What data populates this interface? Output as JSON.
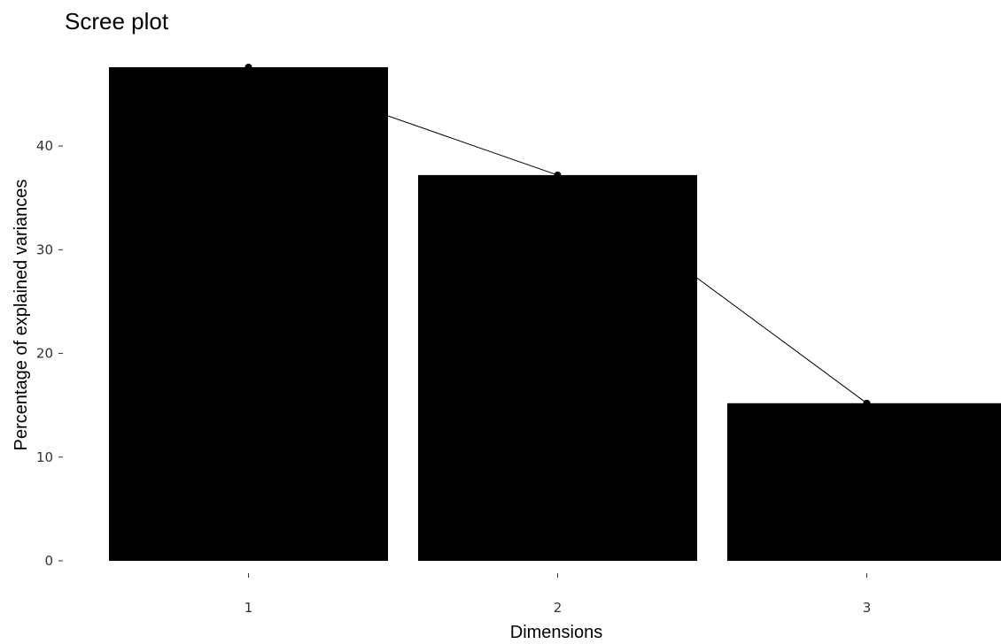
{
  "chart_data": {
    "type": "bar",
    "title": "Scree plot",
    "xlabel": "Dimensions",
    "ylabel": "Percentage of explained variances",
    "categories": [
      "1",
      "2",
      "3"
    ],
    "values": [
      47.6,
      37.2,
      15.2
    ],
    "yticks": [
      0,
      10,
      20,
      30,
      40
    ],
    "ylim": [
      0,
      47.6
    ],
    "grid": false,
    "legend": "none",
    "overlay": "line-with-points",
    "colors": {
      "bar_fill": "#000000",
      "line": "#000000",
      "point": "#000000",
      "background": "#ffffff"
    }
  }
}
